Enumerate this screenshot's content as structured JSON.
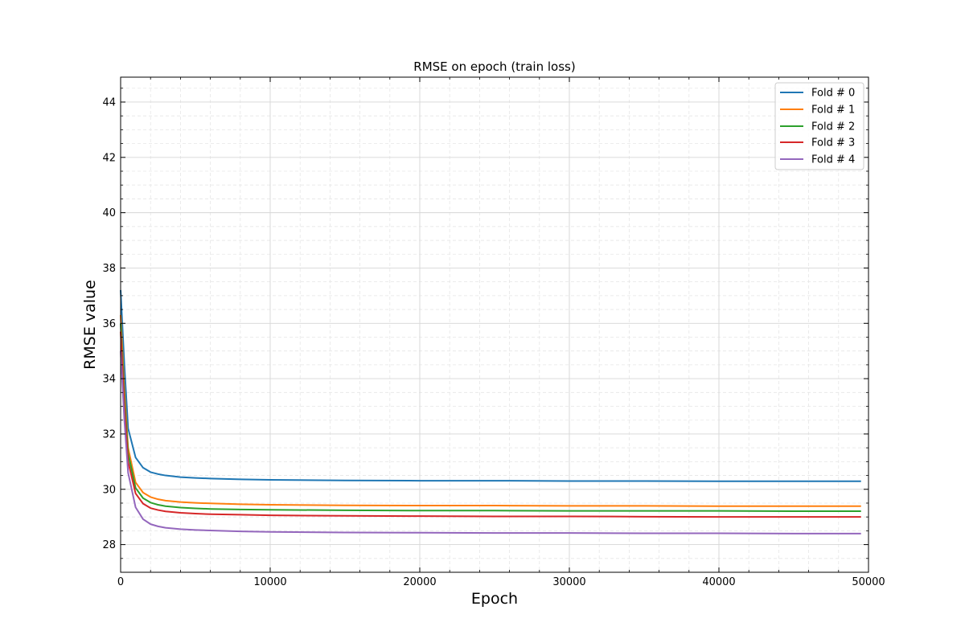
{
  "chart_data": {
    "type": "line",
    "title": "RMSE on epoch (train loss)",
    "xlabel": "Epoch",
    "ylabel": "RMSE value",
    "xlim": [
      0,
      50000
    ],
    "ylim": [
      27,
      44.9
    ],
    "xticks": [
      0,
      10000,
      20000,
      30000,
      40000,
      50000
    ],
    "yticks": [
      28,
      30,
      32,
      34,
      36,
      38,
      40,
      42,
      44
    ],
    "x_minor_step": 2000,
    "y_minor_step": 0.5,
    "grid": true,
    "legend_position": "top-right",
    "x": [
      0,
      250,
      500,
      1000,
      1500,
      2000,
      2500,
      3000,
      4000,
      5000,
      6000,
      8000,
      10000,
      15000,
      20000,
      25000,
      30000,
      35000,
      40000,
      45000,
      49500
    ],
    "series": [
      {
        "name": "Fold # 0",
        "color": "#1f77b4",
        "values": [
          37.2,
          34.5,
          32.2,
          31.15,
          30.78,
          30.62,
          30.55,
          30.5,
          30.44,
          30.41,
          30.39,
          30.36,
          30.34,
          30.32,
          30.31,
          30.31,
          30.3,
          30.3,
          30.29,
          30.29,
          30.29
        ]
      },
      {
        "name": "Fold # 1",
        "color": "#ff7f0e",
        "values": [
          36.3,
          33.6,
          31.5,
          30.25,
          29.88,
          29.72,
          29.64,
          29.59,
          29.54,
          29.51,
          29.49,
          29.46,
          29.44,
          29.42,
          29.41,
          29.41,
          29.4,
          29.4,
          29.39,
          29.39,
          29.39
        ]
      },
      {
        "name": "Fold # 2",
        "color": "#2ca02c",
        "values": [
          36.0,
          33.3,
          31.3,
          30.05,
          29.68,
          29.52,
          29.44,
          29.39,
          29.34,
          29.31,
          29.29,
          29.27,
          29.26,
          29.24,
          29.23,
          29.23,
          29.22,
          29.22,
          29.22,
          29.21,
          29.21
        ]
      },
      {
        "name": "Fold # 3",
        "color": "#d62728",
        "values": [
          35.7,
          33.0,
          31.0,
          29.85,
          29.48,
          29.32,
          29.25,
          29.2,
          29.15,
          29.12,
          29.1,
          29.08,
          29.06,
          29.04,
          29.03,
          29.02,
          29.02,
          29.01,
          29.0,
          29.0,
          29.0
        ]
      },
      {
        "name": "Fold # 4",
        "color": "#9467bd",
        "values": [
          35.0,
          32.5,
          30.6,
          29.35,
          28.92,
          28.74,
          28.66,
          28.61,
          28.56,
          28.53,
          28.51,
          28.48,
          28.46,
          28.44,
          28.43,
          28.42,
          28.42,
          28.41,
          28.41,
          28.4,
          28.4
        ]
      }
    ]
  }
}
